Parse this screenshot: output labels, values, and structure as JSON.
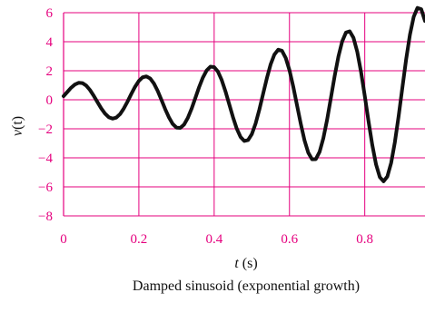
{
  "chart_data": {
    "type": "line",
    "title": "",
    "caption": "Damped sinusoid (exponential growth)",
    "xlabel_var": "t",
    "xlabel_unit": " (s)",
    "ylabel_var": "v",
    "ylabel_arg": "(t)",
    "xlim": [
      0,
      0.96
    ],
    "ylim": [
      -8,
      6
    ],
    "x_ticks": [
      0,
      0.2,
      0.4,
      0.6,
      0.8
    ],
    "x_tick_labels": [
      "0",
      "0.2",
      "0.4",
      "0.6",
      "0.8"
    ],
    "y_ticks": [
      6,
      4,
      2,
      0,
      -2,
      -4,
      -6,
      -8
    ],
    "y_tick_labels": [
      "6",
      "4",
      "2",
      "0",
      "−2",
      "−4",
      "−6",
      "−8"
    ],
    "grid": true,
    "series": [
      {
        "color": "#111111",
        "x": [
          0.0,
          0.01,
          0.02,
          0.03,
          0.04,
          0.05,
          0.06,
          0.07,
          0.08,
          0.09,
          0.1,
          0.11,
          0.12,
          0.13,
          0.14,
          0.15,
          0.16,
          0.17,
          0.18,
          0.19,
          0.2,
          0.21,
          0.22,
          0.23,
          0.24,
          0.25,
          0.26,
          0.27,
          0.28,
          0.29,
          0.3,
          0.31,
          0.32,
          0.33,
          0.34,
          0.35,
          0.36,
          0.37,
          0.38,
          0.39,
          0.4,
          0.41,
          0.42,
          0.43,
          0.44,
          0.45,
          0.46,
          0.47,
          0.48,
          0.49,
          0.5,
          0.51,
          0.52,
          0.53,
          0.54,
          0.55,
          0.56,
          0.57,
          0.58,
          0.59,
          0.6,
          0.61,
          0.62,
          0.63,
          0.64,
          0.65,
          0.66,
          0.67,
          0.68,
          0.69,
          0.7,
          0.71,
          0.72,
          0.73,
          0.74,
          0.75,
          0.76,
          0.77,
          0.78,
          0.79,
          0.8,
          0.81,
          0.82,
          0.83,
          0.84,
          0.85,
          0.86,
          0.87,
          0.88,
          0.89,
          0.9,
          0.91,
          0.92,
          0.93,
          0.94,
          0.95,
          0.96
        ],
        "y": [
          0.25,
          0.54,
          0.83,
          1.05,
          1.17,
          1.15,
          0.98,
          0.68,
          0.28,
          -0.16,
          -0.59,
          -0.95,
          -1.2,
          -1.3,
          -1.23,
          -0.99,
          -0.6,
          -0.12,
          0.41,
          0.9,
          1.3,
          1.55,
          1.61,
          1.47,
          1.12,
          0.61,
          -0.01,
          -0.65,
          -1.22,
          -1.67,
          -1.92,
          -1.94,
          -1.71,
          -1.25,
          -0.62,
          0.12,
          0.87,
          1.53,
          2.02,
          2.28,
          2.25,
          1.94,
          1.36,
          0.58,
          -0.31,
          -1.2,
          -1.99,
          -2.56,
          -2.84,
          -2.78,
          -2.37,
          -1.64,
          -0.68,
          0.41,
          1.49,
          2.44,
          3.12,
          3.45,
          3.38,
          2.89,
          2.04,
          0.91,
          -0.37,
          -1.65,
          -2.8,
          -3.65,
          -4.1,
          -4.09,
          -3.59,
          -2.65,
          -1.37,
          0.12,
          1.63,
          2.98,
          4.02,
          4.63,
          4.72,
          4.27,
          3.31,
          1.93,
          0.27,
          -1.48,
          -3.12,
          -4.46,
          -5.33,
          -5.62,
          -5.29,
          -4.36,
          -2.92,
          -1.12,
          0.86,
          2.8,
          4.49,
          5.72,
          6.33,
          6.24,
          5.43
        ]
      }
    ]
  }
}
